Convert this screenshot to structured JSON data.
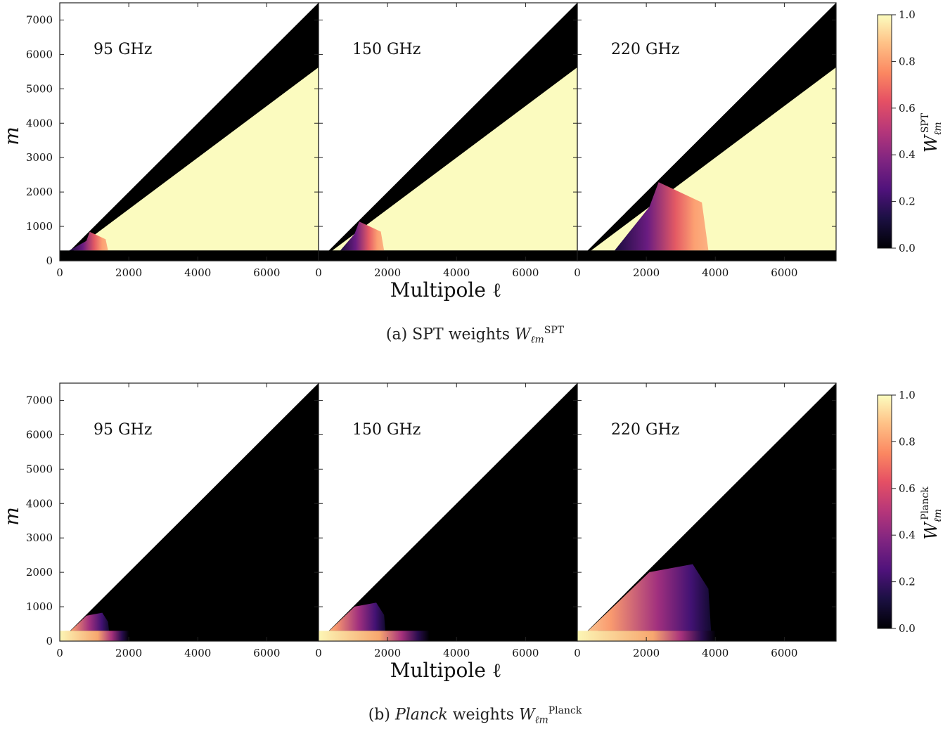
{
  "chart_data": [
    {
      "type": "heatmap",
      "caption_prefix": "(a) SPT weights ",
      "caption_symbol": "W",
      "caption_sub": "ℓm",
      "caption_sup": "SPT",
      "xlabel": "Multipole ℓ",
      "ylabel": "m",
      "xlim": [
        0,
        7500
      ],
      "ylim": [
        0,
        7500
      ],
      "xticks": [
        0,
        2000,
        4000,
        6000
      ],
      "yticks": [
        0,
        1000,
        2000,
        3000,
        4000,
        5000,
        6000,
        7000
      ],
      "colorbar": {
        "label": "W",
        "label_sub": "ℓm",
        "label_sup": "SPT",
        "range": [
          0,
          1
        ],
        "ticks": [
          "0.0",
          "0.2",
          "0.4",
          "0.6",
          "0.8",
          "1.0"
        ],
        "colormap": "magma"
      },
      "panels": [
        {
          "label": "95 GHz",
          "lcut": 1400,
          "lstart": 300,
          "mcut": 300,
          "dominant": "SPT"
        },
        {
          "label": "150 GHz",
          "lcut": 1900,
          "lstart": 700,
          "mcut": 300,
          "dominant": "SPT"
        },
        {
          "label": "220 GHz",
          "lcut": 3800,
          "lstart": 1200,
          "mcut": 300,
          "dominant": "SPT"
        }
      ],
      "mask_slope": 0.75
    },
    {
      "type": "heatmap",
      "caption_prefix": "(b) ",
      "caption_italic": "Planck",
      "caption_mid": " weights ",
      "caption_symbol": "W",
      "caption_sub": "ℓm",
      "caption_sup": "Planck",
      "xlabel": "Multipole ℓ",
      "ylabel": "m",
      "xlim": [
        0,
        7500
      ],
      "ylim": [
        0,
        7500
      ],
      "xticks": [
        0,
        2000,
        4000,
        6000
      ],
      "yticks": [
        0,
        1000,
        2000,
        3000,
        4000,
        5000,
        6000,
        7000
      ],
      "colorbar": {
        "label": "W",
        "label_sub": "ℓm",
        "label_sup": "Planck",
        "range": [
          0,
          1
        ],
        "ticks": [
          "0.0",
          "0.2",
          "0.4",
          "0.6",
          "0.8",
          "1.0"
        ],
        "colormap": "magma"
      },
      "panels": [
        {
          "label": "95 GHz",
          "lcut": 1400,
          "lstart": 300,
          "mcut": 300,
          "stripe_end": 2000,
          "dominant": "Planck"
        },
        {
          "label": "150 GHz",
          "lcut": 1900,
          "lstart": 700,
          "mcut": 300,
          "stripe_end": 3200,
          "dominant": "Planck"
        },
        {
          "label": "220 GHz",
          "lcut": 3800,
          "lstart": 1200,
          "mcut": 300,
          "stripe_end": 4000,
          "dominant": "Planck"
        }
      ]
    }
  ]
}
